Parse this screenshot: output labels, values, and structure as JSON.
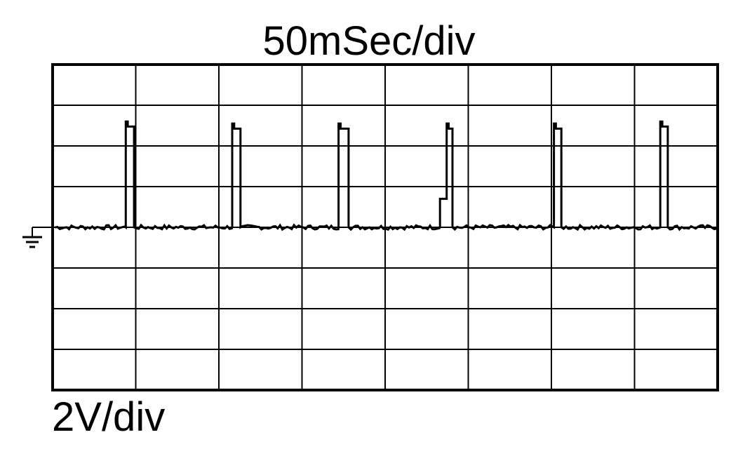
{
  "labels": {
    "timebase": "50mSec/div",
    "volts_per_div": "2V/div"
  },
  "colors": {
    "trace": "#000000",
    "grid": "#000000",
    "background": "#ffffff"
  },
  "icons": {
    "ground": "ground-symbol-icon"
  },
  "chart_data": {
    "type": "line",
    "title": "50mSec/div",
    "xlabel": "",
    "ylabel": "2V/div",
    "grid": true,
    "x_divisions": 8,
    "y_divisions": 8,
    "time_per_div_ms": 50,
    "volts_per_div": 2,
    "ground_level_div_from_top": 4,
    "xlim_ms": [
      0,
      400
    ],
    "ylim_v": [
      -8,
      8
    ],
    "baseline_v": 0,
    "pulses": [
      {
        "start_ms": 44.0,
        "end_ms": 49.0,
        "high_v": 5.2
      },
      {
        "start_ms": 108.0,
        "end_ms": 113.0,
        "high_v": 5.1
      },
      {
        "start_ms": 172.0,
        "end_ms": 178.0,
        "high_v": 5.1
      },
      {
        "start_ms": 237.0,
        "end_ms": 240.5,
        "high_v": 5.1,
        "step_v": 1.4,
        "step_start_ms": 233.0
      },
      {
        "start_ms": 301.5,
        "end_ms": 306.0,
        "high_v": 5.1
      },
      {
        "start_ms": 365.5,
        "end_ms": 370.0,
        "high_v": 5.2
      }
    ]
  }
}
